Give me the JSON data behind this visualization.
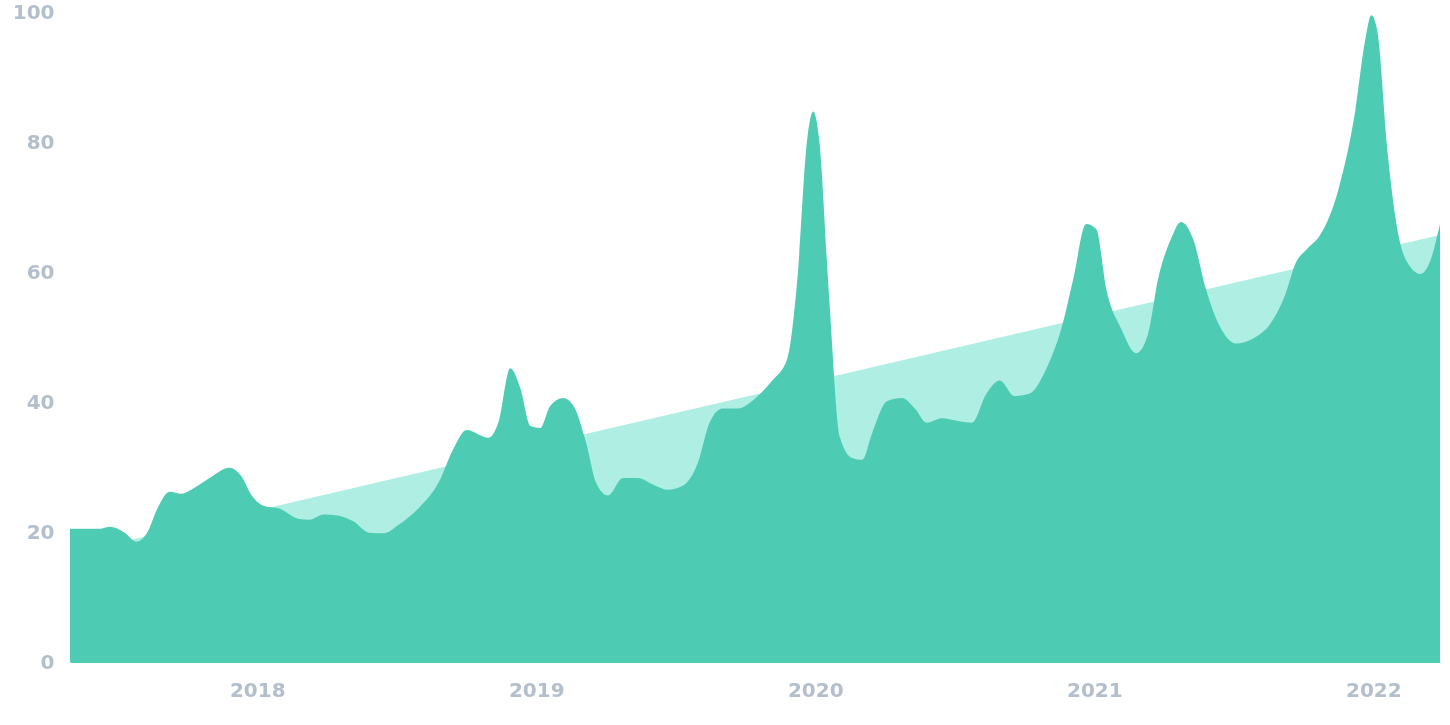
{
  "chart_data": {
    "type": "area",
    "xlim": [
      2017.329,
      2022.239
    ],
    "ylim": [
      0,
      100
    ],
    "xticks": [
      2018,
      2019,
      2020,
      2021,
      2022
    ],
    "yticks": [
      0,
      20,
      40,
      60,
      80,
      100
    ],
    "series": [
      {
        "color": "#aeeee3",
        "x": [
          2017.329,
          2022.239
        ],
        "values": [
          16.6,
          65.7
        ]
      },
      {
        "color": "#4ecbb3",
        "x": [
          2017.329,
          2017.436,
          2017.471,
          2017.525,
          2017.568,
          2017.607,
          2017.643,
          2017.686,
          2017.729,
          2017.775,
          2017.829,
          2017.9,
          2017.943,
          2017.979,
          2018.025,
          2018.079,
          2018.15,
          2018.186,
          2018.239,
          2018.293,
          2018.346,
          2018.4,
          2018.454,
          2018.507,
          2018.579,
          2018.65,
          2018.704,
          2018.75,
          2018.829,
          2018.864,
          2018.907,
          2018.943,
          2018.979,
          2019.014,
          2019.05,
          2019.096,
          2019.132,
          2019.179,
          2019.214,
          2019.257,
          2019.311,
          2019.364,
          2019.418,
          2019.471,
          2019.525,
          2019.579,
          2019.621,
          2019.668,
          2019.721,
          2019.793,
          2019.846,
          2019.9,
          2019.936,
          2019.971,
          2019.993,
          2020.014,
          2020.05,
          2020.089,
          2020.132,
          2020.168,
          2020.204,
          2020.257,
          2020.311,
          2020.357,
          2020.4,
          2020.454,
          2020.507,
          2020.561,
          2020.614,
          2020.661,
          2020.714,
          2020.768,
          2020.829,
          2020.882,
          2020.925,
          2020.971,
          2021.007,
          2021.043,
          2021.096,
          2021.15,
          2021.193,
          2021.229,
          2021.275,
          2021.311,
          2021.354,
          2021.4,
          2021.454,
          2021.507,
          2021.571,
          2021.632,
          2021.686,
          2021.721,
          2021.764,
          2021.811,
          2021.875,
          2021.936,
          2021.971,
          2021.993,
          2022.014,
          2022.05,
          2022.086,
          2022.132,
          2022.168,
          2022.204,
          2022.239
        ],
        "values": [
          20.5,
          20.5,
          20.8,
          19.9,
          18.5,
          20,
          23.7,
          26.2,
          25.9,
          26.8,
          28.3,
          29.9,
          28.6,
          25.7,
          24,
          23.6,
          22,
          21.9,
          22.7,
          22.5,
          21.6,
          19.9,
          19.8,
          21.1,
          23.7,
          27.6,
          32.9,
          35.7,
          34.5,
          36.8,
          45.2,
          42.1,
          36.3,
          36,
          39.4,
          40.6,
          39.5,
          33.7,
          27.6,
          25.6,
          28.3,
          28.3,
          27.3,
          26.5,
          27.1,
          30.6,
          36.8,
          39,
          39,
          40.9,
          43.3,
          46.7,
          59,
          80.4,
          84.7,
          80.4,
          55.9,
          34.5,
          31.4,
          31.1,
          35.2,
          40.1,
          40.6,
          39,
          36.8,
          37.5,
          37.1,
          36.8,
          41.3,
          43.3,
          40.9,
          41.3,
          45.2,
          51.3,
          59,
          67.4,
          66.6,
          57.4,
          51.3,
          47.5,
          50.5,
          59,
          65.1,
          67.7,
          65.1,
          57.4,
          51.3,
          49,
          49.8,
          52.1,
          56.7,
          61.3,
          63.6,
          65.8,
          72.7,
          85,
          95.7,
          99.5,
          97.2,
          78.9,
          66.6,
          60.8,
          59.7,
          61.7,
          67.4
        ]
      }
    ]
  }
}
